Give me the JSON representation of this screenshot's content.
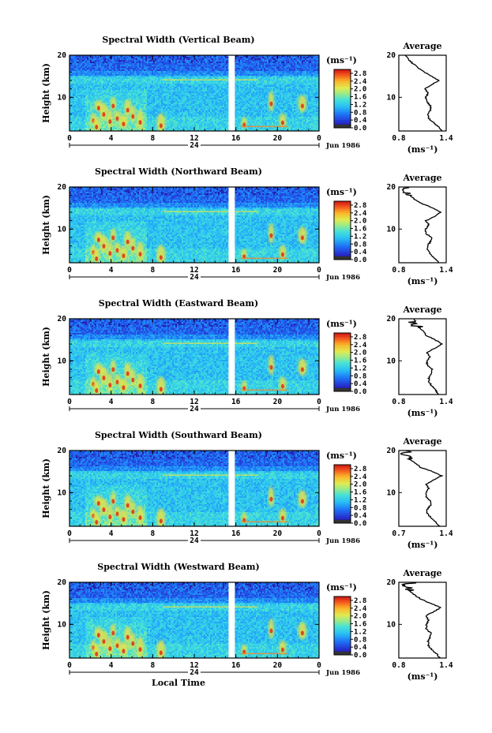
{
  "figure": {
    "xlabel": "Local Time",
    "date_label": "Jun 1986",
    "colorbar_unit": "(ms⁻¹)",
    "average_title": "Average",
    "average_xlabel": "(ms⁻¹)"
  },
  "chart_data": [
    {
      "type": "heatmap",
      "title": "Spectral Width (Vertical Beam)",
      "ylabel": "Height (km)",
      "xlabel": "",
      "x_ticks": [
        "0",
        "4",
        "8",
        "12",
        "16",
        "20",
        "0"
      ],
      "day_ticks": [
        "24"
      ],
      "y_ticks": [
        "10",
        "20"
      ],
      "ylim": [
        2,
        20
      ],
      "xlim": [
        0,
        24
      ],
      "colorbar_ticks": [
        "2.8",
        "2.4",
        "2.0",
        "1.6",
        "1.2",
        "0.8",
        "0.4",
        "0.0"
      ],
      "colorbar_range": [
        0.0,
        3.0
      ],
      "data_gap_hours": [
        15.3,
        15.9
      ],
      "average_profile": {
        "x_ticks": [
          "0.8",
          "1.4"
        ],
        "xlim": [
          0.8,
          1.4
        ],
        "y_ticks": [
          "10",
          "20"
        ],
        "height_km": [
          2,
          3,
          4,
          5,
          6,
          7,
          8,
          9,
          10,
          11,
          12,
          13,
          14,
          15,
          16,
          17,
          18,
          19,
          20
        ],
        "width_ms": [
          1.35,
          1.3,
          1.24,
          1.18,
          1.17,
          1.2,
          1.2,
          1.15,
          1.14,
          1.17,
          1.13,
          1.22,
          1.3,
          1.22,
          1.12,
          1.05,
          0.98,
          0.92,
          0.88
        ]
      }
    },
    {
      "type": "heatmap",
      "title": "Spectral Width (Northward Beam)",
      "ylabel": "Height (km)",
      "xlabel": "",
      "x_ticks": [
        "0",
        "4",
        "8",
        "12",
        "16",
        "20",
        "0"
      ],
      "day_ticks": [
        "24"
      ],
      "y_ticks": [
        "10",
        "20"
      ],
      "ylim": [
        2,
        20
      ],
      "xlim": [
        0,
        24
      ],
      "colorbar_ticks": [
        "2.8",
        "2.4",
        "2.0",
        "1.6",
        "1.2",
        "0.8",
        "0.4",
        "0.0"
      ],
      "colorbar_range": [
        0.0,
        3.0
      ],
      "data_gap_hours": [
        15.3,
        15.9
      ],
      "average_profile": {
        "x_ticks": [
          "0.8",
          "1.4"
        ],
        "xlim": [
          0.8,
          1.4
        ],
        "y_ticks": [
          "10",
          "20"
        ],
        "height_km": [
          2,
          3,
          4,
          5,
          6,
          7,
          8,
          9,
          10,
          11,
          12,
          13,
          14,
          15,
          16,
          17,
          18,
          19,
          20
        ],
        "width_ms": [
          1.3,
          1.26,
          1.2,
          1.17,
          1.16,
          1.2,
          1.21,
          1.14,
          1.14,
          1.18,
          1.14,
          1.25,
          1.33,
          1.24,
          1.1,
          1.0,
          0.95,
          0.88,
          0.92
        ]
      }
    },
    {
      "type": "heatmap",
      "title": "Spectral Width (Eastward Beam)",
      "ylabel": "Height (km)",
      "xlabel": "",
      "x_ticks": [
        "0",
        "4",
        "8",
        "12",
        "16",
        "20",
        "0"
      ],
      "day_ticks": [
        "24"
      ],
      "y_ticks": [
        "10",
        "20"
      ],
      "ylim": [
        2,
        20
      ],
      "xlim": [
        0,
        24
      ],
      "colorbar_ticks": [
        "2.8",
        "2.4",
        "2.0",
        "1.6",
        "1.2",
        "0.8",
        "0.4",
        "0.0"
      ],
      "colorbar_range": [
        0.0,
        3.0
      ],
      "data_gap_hours": [
        15.3,
        15.9
      ],
      "average_profile": {
        "x_ticks": [
          "0.8",
          "1.4"
        ],
        "xlim": [
          0.8,
          1.4
        ],
        "y_ticks": [
          "10",
          "20"
        ],
        "height_km": [
          2,
          3,
          4,
          5,
          6,
          7,
          8,
          9,
          10,
          11,
          12,
          13,
          14,
          15,
          16,
          17,
          18,
          19,
          20
        ],
        "width_ms": [
          1.3,
          1.27,
          1.22,
          1.18,
          1.18,
          1.22,
          1.22,
          1.16,
          1.16,
          1.2,
          1.15,
          1.26,
          1.35,
          1.26,
          1.15,
          1.12,
          1.05,
          0.97,
          1.0
        ]
      }
    },
    {
      "type": "heatmap",
      "title": "Spectral Width (Southward Beam)",
      "ylabel": "Height (km)",
      "xlabel": "",
      "x_ticks": [
        "0",
        "4",
        "8",
        "12",
        "16",
        "20",
        "0"
      ],
      "day_ticks": [
        "24"
      ],
      "y_ticks": [
        "10",
        "20"
      ],
      "ylim": [
        2,
        20
      ],
      "xlim": [
        0,
        24
      ],
      "colorbar_ticks": [
        "2.8",
        "2.4",
        "2.0",
        "1.6",
        "1.2",
        "0.8",
        "0.4",
        "0.0"
      ],
      "colorbar_range": [
        0.0,
        3.0
      ],
      "data_gap_hours": [
        15.3,
        15.9
      ],
      "average_profile": {
        "x_ticks": [
          "0.7",
          "1.4"
        ],
        "xlim": [
          0.7,
          1.4
        ],
        "y_ticks": [
          "10",
          "20"
        ],
        "height_km": [
          2,
          3,
          4,
          5,
          6,
          7,
          8,
          9,
          10,
          11,
          12,
          13,
          14,
          15,
          16,
          17,
          18,
          19,
          20
        ],
        "width_ms": [
          1.3,
          1.25,
          1.18,
          1.12,
          1.12,
          1.17,
          1.17,
          1.1,
          1.1,
          1.14,
          1.1,
          1.22,
          1.33,
          1.2,
          1.02,
          0.95,
          0.85,
          0.78,
          0.8
        ]
      }
    },
    {
      "type": "heatmap",
      "title": "Spectral Width (Westward Beam)",
      "ylabel": "Height (km)",
      "xlabel": "Local Time",
      "x_ticks": [
        "0",
        "4",
        "8",
        "12",
        "16",
        "20",
        "0"
      ],
      "day_ticks": [
        "24"
      ],
      "y_ticks": [
        "10",
        "20"
      ],
      "ylim": [
        2,
        20
      ],
      "xlim": [
        0,
        24
      ],
      "colorbar_ticks": [
        "2.8",
        "2.4",
        "2.0",
        "1.6",
        "1.2",
        "0.8",
        "0.4",
        "0.0"
      ],
      "colorbar_range": [
        0.0,
        3.0
      ],
      "data_gap_hours": [
        15.3,
        15.9
      ],
      "average_profile": {
        "x_ticks": [
          "0.8",
          "1.4"
        ],
        "xlim": [
          0.8,
          1.4
        ],
        "y_ticks": [
          "10",
          "20"
        ],
        "height_km": [
          2,
          3,
          4,
          5,
          6,
          7,
          8,
          9,
          10,
          11,
          12,
          13,
          14,
          15,
          16,
          17,
          18,
          19,
          20
        ],
        "width_ms": [
          1.32,
          1.28,
          1.22,
          1.17,
          1.17,
          1.2,
          1.2,
          1.15,
          1.15,
          1.18,
          1.14,
          1.24,
          1.33,
          1.2,
          1.08,
          1.0,
          0.93,
          0.88,
          0.97
        ]
      }
    }
  ]
}
